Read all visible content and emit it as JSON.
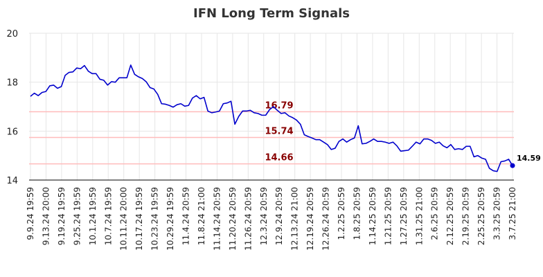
{
  "chart_data": {
    "type": "line",
    "title": "IFN Long Term Signals",
    "xlabel": "",
    "ylabel": "",
    "ylim": [
      14,
      20
    ],
    "yticks": [
      14,
      16,
      18,
      20
    ],
    "grid": true,
    "line_color": "#0000cc",
    "signal_color": "#ffbbbb",
    "signal_label_color": "#880000",
    "x_tick_labels": [
      "9.9.24 19:59",
      "9.13.24 20:00",
      "9.19.24 19:59",
      "9.25.24 19:59",
      "10.1.24 19:59",
      "10.7.24 19:59",
      "10.11.24 20:00",
      "10.17.24 19:59",
      "10.23.24 19:59",
      "10.29.24 19:59",
      "11.4.24 20:59",
      "11.8.24 21:00",
      "11.14.24 20:59",
      "11.20.24 20:59",
      "11.26.24 20:59",
      "12.3.24 20:59",
      "12.9.24 20:59",
      "12.13.24 21:00",
      "12.19.24 20:59",
      "12.26.24 20:59",
      "1.2.25 20:59",
      "1.8.25 20:59",
      "1.14.25 20:59",
      "1.21.25 20:59",
      "1.27.25 20:59",
      "1.31.25 21:00",
      "2.6.25 20:59",
      "2.12.25 20:59",
      "2.19.25 20:59",
      "2.25.25 20:59",
      "3.3.25 20:59",
      "3.7.25 21:00"
    ],
    "signals": [
      {
        "value": 16.79,
        "label": "16.79"
      },
      {
        "value": 15.74,
        "label": "15.74"
      },
      {
        "value": 14.66,
        "label": "14.66"
      }
    ],
    "last_value_label": "14.59",
    "values": [
      17.42,
      17.55,
      17.45,
      17.58,
      17.62,
      17.85,
      17.88,
      17.75,
      17.82,
      18.28,
      18.4,
      18.42,
      18.58,
      18.55,
      18.68,
      18.45,
      18.35,
      18.35,
      18.12,
      18.08,
      17.88,
      18.02,
      18.0,
      18.18,
      18.18,
      18.18,
      18.7,
      18.32,
      18.22,
      18.15,
      18.02,
      17.78,
      17.72,
      17.5,
      17.12,
      17.1,
      17.05,
      16.98,
      17.08,
      17.12,
      17.02,
      17.05,
      17.35,
      17.45,
      17.32,
      17.38,
      16.82,
      16.75,
      16.78,
      16.82,
      17.12,
      17.15,
      17.22,
      16.28,
      16.6,
      16.82,
      16.82,
      16.85,
      16.75,
      16.72,
      16.65,
      16.65,
      16.88,
      17.0,
      16.85,
      16.72,
      16.75,
      16.62,
      16.55,
      16.45,
      16.28,
      15.85,
      15.78,
      15.72,
      15.65,
      15.65,
      15.55,
      15.45,
      15.25,
      15.3,
      15.58,
      15.68,
      15.55,
      15.65,
      15.72,
      16.22,
      15.48,
      15.5,
      15.58,
      15.68,
      15.58,
      15.58,
      15.55,
      15.5,
      15.55,
      15.4,
      15.18,
      15.2,
      15.22,
      15.38,
      15.55,
      15.48,
      15.68,
      15.68,
      15.62,
      15.5,
      15.55,
      15.4,
      15.32,
      15.45,
      15.25,
      15.28,
      15.25,
      15.38,
      15.38,
      14.95,
      15.0,
      14.9,
      14.85,
      14.48,
      14.38,
      14.35,
      14.75,
      14.78,
      14.85,
      14.59
    ]
  }
}
